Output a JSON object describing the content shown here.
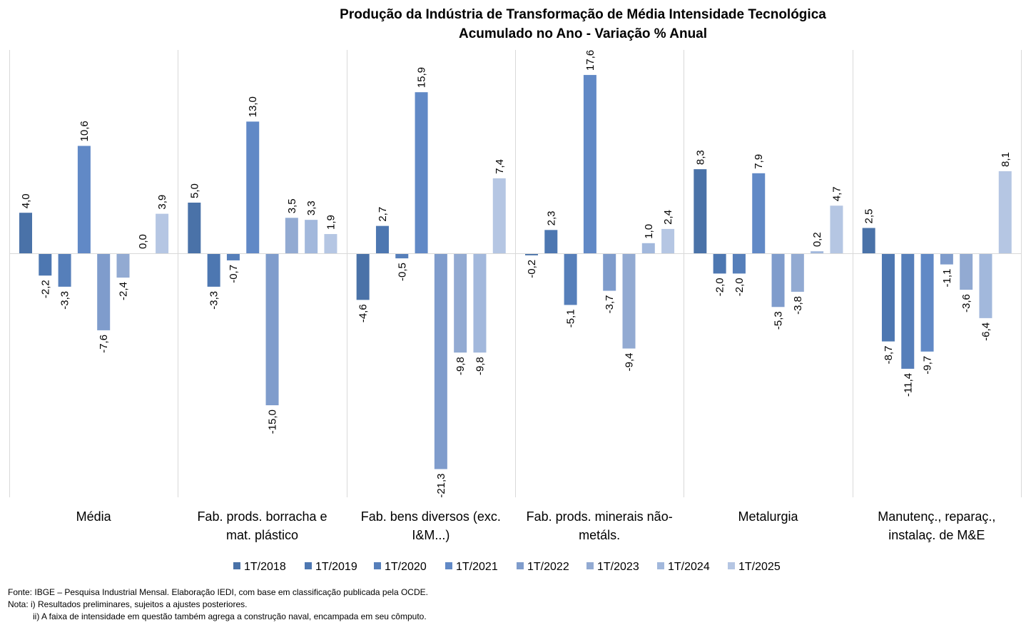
{
  "chart_data": {
    "type": "bar",
    "title": [
      "Produção da Indústria de Transformação de Média Intensidade Tecnológica",
      "Acumulado no Ano - Variação % Anual"
    ],
    "xlabel": "",
    "ylabel": "",
    "ylim": [
      -21.3,
      20
    ],
    "grid": false,
    "legend_position": "bottom",
    "categories": [
      [
        "Média"
      ],
      [
        "Fab. prods. borracha e",
        "mat. plástico"
      ],
      [
        "Fab. bens diversos (exc.",
        "I&M...)"
      ],
      [
        "Fab. prods. minerais não-",
        "metáls."
      ],
      [
        "Metalurgia"
      ],
      [
        "Manutenç., reparaç.,",
        "instalaç. de M&E"
      ]
    ],
    "series": [
      {
        "name": "1T/2018",
        "color": "#4a72a8",
        "values": [
          4.0,
          5.0,
          -4.6,
          -0.2,
          8.3,
          2.5
        ]
      },
      {
        "name": "1T/2019",
        "color": "#4d77b1",
        "values": [
          -2.2,
          -3.3,
          2.7,
          2.3,
          -2.0,
          -8.7
        ]
      },
      {
        "name": "1T/2020",
        "color": "#567fba",
        "values": [
          -3.3,
          -0.7,
          -0.5,
          -5.1,
          -2.0,
          -11.4
        ]
      },
      {
        "name": "1T/2021",
        "color": "#6189c6",
        "values": [
          10.6,
          13.0,
          15.9,
          17.6,
          7.9,
          -9.7
        ]
      },
      {
        "name": "1T/2022",
        "color": "#7f9ccc",
        "values": [
          -7.6,
          -15.0,
          -21.3,
          -3.7,
          -5.3,
          -1.1
        ]
      },
      {
        "name": "1T/2023",
        "color": "#92aad2",
        "values": [
          -2.4,
          3.5,
          -9.8,
          -9.4,
          -3.8,
          -3.6
        ]
      },
      {
        "name": "1T/2024",
        "color": "#a2b8dc",
        "values": [
          0.0,
          3.3,
          -9.8,
          1.0,
          0.2,
          -6.4
        ]
      },
      {
        "name": "1T/2025",
        "color": "#b5c6e3",
        "values": [
          3.9,
          1.9,
          7.4,
          2.4,
          4.7,
          8.1
        ]
      }
    ]
  },
  "notes": {
    "source": "Fonte: IBGE – Pesquisa Industrial Mensal. Elaboração IEDI, com base em classificação publicada pela OCDE.",
    "note1": "Nota: i) Resultados preliminares, sujeitos a ajustes posteriores.",
    "note2": "ii) A faixa de intensidade em questão também agrega a construção naval, encampada em seu cômputo."
  }
}
